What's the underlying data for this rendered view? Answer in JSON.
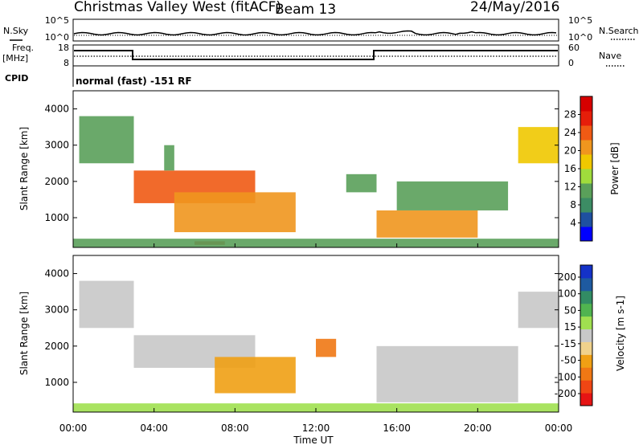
{
  "header": {
    "station": "Christmas Valley West (fitACF)",
    "beam": "Beam 13",
    "date": "24/May/2016"
  },
  "params_panel": {
    "nsky_label": "N.Sky",
    "nsky_ticks": [
      "10^5",
      "10^0"
    ],
    "nsearch_label": "N.Search",
    "nsearch_ticks": [
      "10^5",
      "10^0"
    ],
    "freq_label_line1": "Freq.",
    "freq_label_line2": "[MHz]",
    "freq_ticks": [
      "18",
      "8"
    ],
    "nave_label": "Nave",
    "nave_ticks": [
      "60",
      "0"
    ],
    "cpid_label": "CPID",
    "cpid_text": "normal (fast) -151 RF"
  },
  "time_axis": {
    "ticks": [
      "00:00",
      "04:00",
      "08:00",
      "12:00",
      "16:00",
      "20:00",
      "00:00"
    ],
    "label": "Time UT"
  },
  "colors": {
    "gs_gray": "#c8c8c8",
    "power": [
      "#0000ff",
      "#1e50a0",
      "#3c8c64",
      "#5aa05a",
      "#a0dc3c",
      "#f0c800",
      "#f0961e",
      "#f05a14",
      "#e61e0a",
      "#d70000"
    ],
    "velocity": [
      "#e61414",
      "#f04614",
      "#f07814",
      "#f0a014",
      "#f0d28c",
      "#c8c8c8",
      "#a0e050",
      "#50b450",
      "#328c64",
      "#1e5aa0",
      "#1432c8"
    ]
  },
  "chart_data": [
    {
      "type": "heatmap",
      "title": "Power",
      "xlabel": "Time UT",
      "ylabel": "Slant Range [km]",
      "xlim": [
        "00:00",
        "24:00"
      ],
      "ylim": [
        180,
        4500
      ],
      "yticks": [
        "1000",
        "2000",
        "3000",
        "4000"
      ],
      "colorbar_label": "Power [dB]",
      "colorbar_ticks": [
        "4",
        "8",
        "12",
        "16",
        "20",
        "24",
        "28"
      ],
      "colorbar_range": [
        0,
        32
      ],
      "regions": [
        {
          "t": [
            0.3,
            3.0
          ],
          "r": [
            2500,
            3800
          ],
          "v": 10
        },
        {
          "t": [
            3.0,
            9.0
          ],
          "r": [
            1400,
            2300
          ],
          "v": 24
        },
        {
          "t": [
            5.0,
            11.0
          ],
          "r": [
            600,
            1700
          ],
          "v": 22
        },
        {
          "t": [
            4.5,
            5.0
          ],
          "r": [
            2300,
            3000
          ],
          "v": 12
        },
        {
          "t": [
            13.5,
            15.0
          ],
          "r": [
            1700,
            2200
          ],
          "v": 10
        },
        {
          "t": [
            15.0,
            20.0
          ],
          "r": [
            450,
            1200
          ],
          "v": 20
        },
        {
          "t": [
            16.0,
            21.5
          ],
          "r": [
            1200,
            2000
          ],
          "v": 12
        },
        {
          "t": [
            22.0,
            24.0
          ],
          "r": [
            2500,
            3500
          ],
          "v": 18
        },
        {
          "t": [
            6.0,
            7.5
          ],
          "r": [
            250,
            350
          ],
          "v": 28
        },
        {
          "t": [
            0.0,
            24.0
          ],
          "r": [
            180,
            420
          ],
          "v": 10
        }
      ]
    },
    {
      "type": "heatmap",
      "title": "Velocity",
      "xlabel": "Time UT",
      "ylabel": "Slant Range [km]",
      "xlim": [
        "00:00",
        "24:00"
      ],
      "ylim": [
        180,
        4500
      ],
      "yticks": [
        "1000",
        "2000",
        "3000",
        "4000"
      ],
      "colorbar_label": "Velocity [m s-1]",
      "colorbar_ticks": [
        "200",
        "100",
        "50",
        "15",
        "-15",
        "-50",
        "-100",
        "-200"
      ],
      "colorbar_range": [
        -250,
        250
      ],
      "regions": [
        {
          "t": [
            0.3,
            3.0
          ],
          "r": [
            2500,
            3800
          ],
          "v": 0,
          "gs": true
        },
        {
          "t": [
            3.0,
            9.0
          ],
          "r": [
            1400,
            2300
          ],
          "v": 0,
          "gs": true
        },
        {
          "t": [
            7.0,
            11.0
          ],
          "r": [
            700,
            1700
          ],
          "v": -40
        },
        {
          "t": [
            12.0,
            13.0
          ],
          "r": [
            1700,
            2200
          ],
          "v": -70
        },
        {
          "t": [
            15.0,
            22.0
          ],
          "r": [
            450,
            2000
          ],
          "v": 0,
          "gs": true
        },
        {
          "t": [
            22.0,
            24.0
          ],
          "r": [
            2500,
            3500
          ],
          "v": 0,
          "gs": true
        },
        {
          "t": [
            0.0,
            24.0
          ],
          "r": [
            180,
            420
          ],
          "v": 20
        }
      ]
    }
  ]
}
